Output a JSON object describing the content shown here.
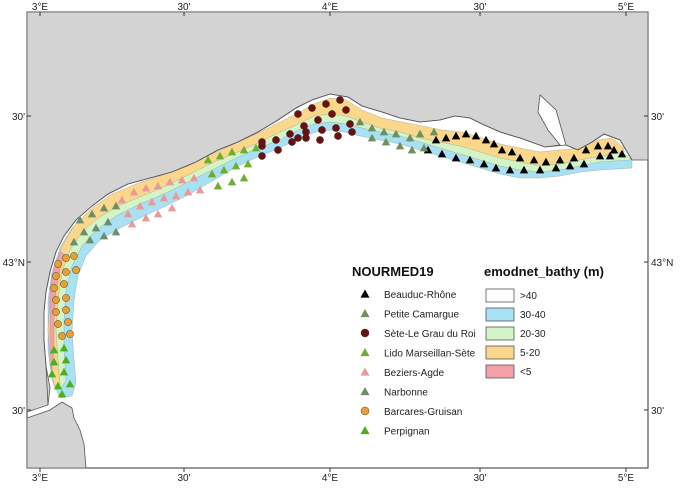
{
  "frame_ticks": {
    "bottom": [
      "3°E",
      "30'",
      "4°E",
      "30'",
      "5°E"
    ],
    "top": [
      "3°E",
      "30'",
      "4°E",
      "30'",
      "5°E"
    ],
    "left": [
      "30'",
      "43°N",
      "30'"
    ],
    "right": [
      "30'",
      "43°N",
      "30'"
    ]
  },
  "legend_sites": {
    "title": "NOURMED19",
    "items": [
      {
        "label": "Beauduc-Rhône",
        "marker": "triangle",
        "color": "#000000"
      },
      {
        "label": "Petite Camargue",
        "marker": "triangle",
        "color": "#6f8f5f"
      },
      {
        "label": "Sète-Le Grau du Roi",
        "marker": "circle",
        "color": "#6b0f0f"
      },
      {
        "label": "Lido Marseillan-Sète",
        "marker": "triangle",
        "color": "#6fae2f"
      },
      {
        "label": "Beziers-Agde",
        "marker": "triangle",
        "color": "#e89a9a"
      },
      {
        "label": "Narbonne",
        "marker": "triangle",
        "color": "#6b8e6b"
      },
      {
        "label": "Barcares-Gruisan",
        "marker": "circle",
        "color": "#e8a030"
      },
      {
        "label": "Perpignan",
        "marker": "triangle",
        "color": "#4caf20"
      }
    ]
  },
  "legend_bathy": {
    "title": "emodnet_bathy (m)",
    "items": [
      {
        "label": ">40",
        "color": "#ffffff"
      },
      {
        "label": "30-40",
        "color": "#a8e0f4"
      },
      {
        "label": "20-30",
        "color": "#d2f4c6"
      },
      {
        "label": "5-20",
        "color": "#fbd78c"
      },
      {
        "label": "<5",
        "color": "#f4a0a8"
      }
    ]
  },
  "colors": {
    "land": "#d3d3d3",
    "sea": "#ffffff",
    "coastline": "#555555"
  }
}
